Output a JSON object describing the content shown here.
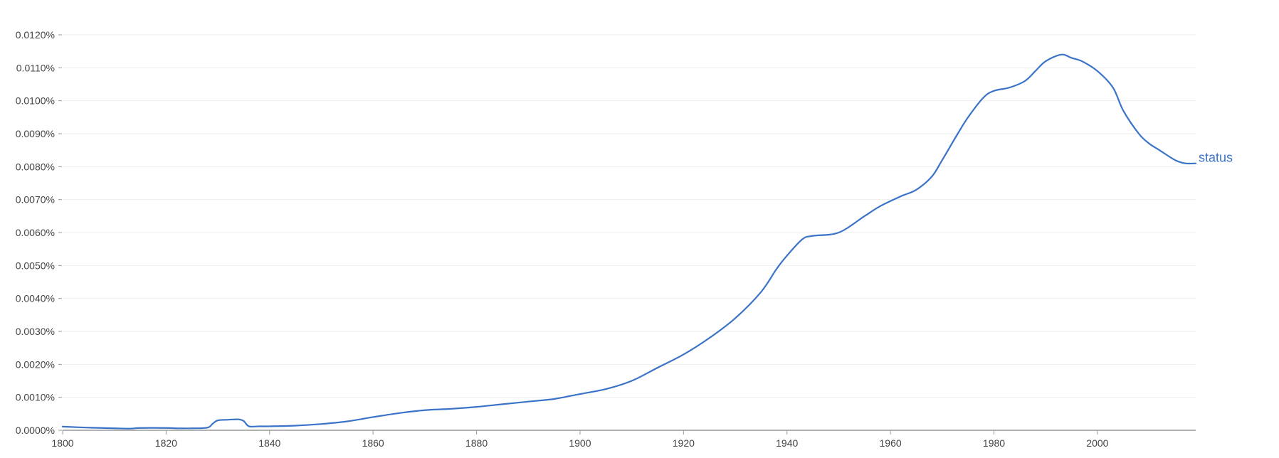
{
  "colors": {
    "series": "#3a73c7",
    "grid": "#eeeeee",
    "axis": "#999999",
    "text": "#444444"
  },
  "chart_data": {
    "type": "line",
    "title": "",
    "xlabel": "",
    "ylabel": "",
    "xlim": [
      1800,
      2019
    ],
    "ylim": [
      0,
      0.012
    ],
    "grid": true,
    "legend": "none",
    "xticks": [
      1800,
      1820,
      1840,
      1860,
      1880,
      1900,
      1920,
      1940,
      1960,
      1980,
      2000
    ],
    "xtick_labels": [
      "1800",
      "1820",
      "1840",
      "1860",
      "1880",
      "1900",
      "1920",
      "1940",
      "1960",
      "1980",
      "2000"
    ],
    "yticks": [
      0,
      0.001,
      0.002,
      0.003,
      0.004,
      0.005,
      0.006,
      0.007,
      0.008,
      0.009,
      0.01,
      0.011,
      0.012
    ],
    "ytick_labels": [
      "0.0000%",
      "0.0010%",
      "0.0020%",
      "0.0030%",
      "0.0040%",
      "0.0050%",
      "0.0060%",
      "0.0070%",
      "0.0080%",
      "0.0090%",
      "0.0100%",
      "0.0110%",
      "0.0120%"
    ],
    "series": [
      {
        "name": "status",
        "x": [
          1800,
          1805,
          1810,
          1813,
          1815,
          1820,
          1822,
          1825,
          1828,
          1829,
          1830,
          1832,
          1834,
          1835,
          1836,
          1838,
          1840,
          1845,
          1850,
          1855,
          1860,
          1865,
          1870,
          1875,
          1880,
          1885,
          1890,
          1895,
          1900,
          1905,
          1910,
          1915,
          1920,
          1925,
          1930,
          1935,
          1938,
          1940,
          1943,
          1945,
          1950,
          1955,
          1958,
          1962,
          1965,
          1968,
          1970,
          1973,
          1975,
          1978,
          1980,
          1983,
          1986,
          1988,
          1990,
          1993,
          1995,
          1997,
          2000,
          2003,
          2005,
          2008,
          2010,
          2012,
          2015,
          2017,
          2019
        ],
        "values": [
          0.00011,
          8e-05,
          6e-05,
          5e-05,
          7e-05,
          7e-05,
          6e-05,
          6e-05,
          8e-05,
          0.0002,
          0.0003,
          0.00032,
          0.00033,
          0.00028,
          0.00012,
          0.00012,
          0.00012,
          0.00014,
          0.00019,
          0.00027,
          0.0004,
          0.00052,
          0.00061,
          0.00065,
          0.00071,
          0.00079,
          0.00087,
          0.00095,
          0.0011,
          0.00125,
          0.0015,
          0.0019,
          0.0023,
          0.0028,
          0.0034,
          0.0042,
          0.0049,
          0.0053,
          0.0058,
          0.0059,
          0.006,
          0.0065,
          0.0068,
          0.0071,
          0.0073,
          0.0077,
          0.0082,
          0.009,
          0.0095,
          0.0101,
          0.0103,
          0.0104,
          0.0106,
          0.0109,
          0.0112,
          0.0114,
          0.0113,
          0.0112,
          0.0109,
          0.0104,
          0.0097,
          0.009,
          0.0087,
          0.0085,
          0.0082,
          0.0081,
          0.0081
        ]
      }
    ]
  }
}
